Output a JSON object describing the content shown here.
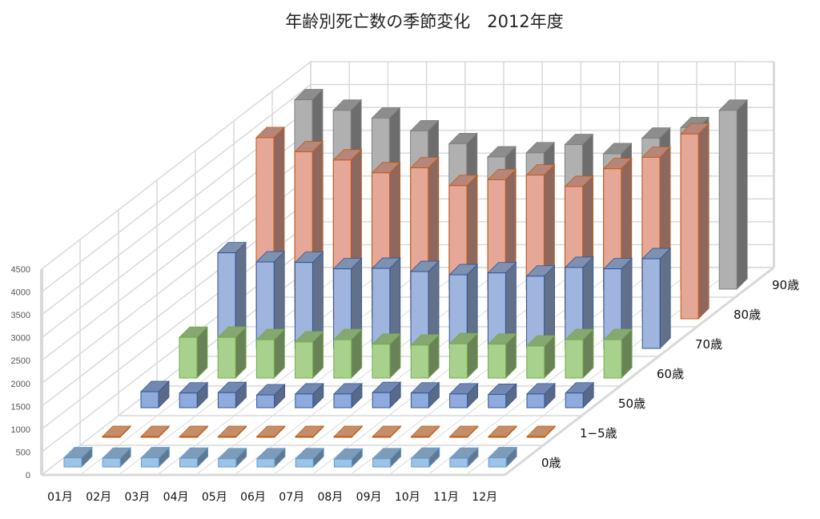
{
  "chart_data": {
    "type": "bar",
    "subtype": "3d-column",
    "title": "年齢別死亡数の季節変化　2012年度",
    "xlabel": "",
    "ylabel": "",
    "ylim": [
      0,
      4500
    ],
    "yticks": [
      "0",
      "500",
      "1000",
      "1500",
      "2000",
      "2500",
      "3000",
      "3500",
      "4000",
      "4500"
    ],
    "categories": [
      "01月",
      "02月",
      "03月",
      "04月",
      "05月",
      "06月",
      "07月",
      "08月",
      "09月",
      "10月",
      "11月",
      "12月"
    ],
    "grid": true,
    "series": [
      {
        "name": "0歳",
        "color": "#9dc3e6",
        "edge": "#5b9bd5",
        "values": [
          200,
          190,
          200,
          190,
          180,
          180,
          180,
          170,
          180,
          190,
          190,
          200
        ]
      },
      {
        "name": "1−5歳",
        "color": "#f4b183",
        "edge": "#c55a11",
        "values": [
          15,
          15,
          15,
          15,
          15,
          15,
          15,
          15,
          15,
          15,
          15,
          15
        ]
      },
      {
        "name": "50歳",
        "color": "#8faadc",
        "edge": "#2f5597",
        "values": [
          350,
          320,
          330,
          280,
          300,
          300,
          330,
          320,
          300,
          290,
          300,
          320
        ]
      },
      {
        "name": "60歳",
        "color": "#a9d18e",
        "edge": "#70ad47",
        "values": [
          890,
          890,
          840,
          790,
          840,
          740,
          720,
          750,
          740,
          700,
          840,
          840
        ]
      },
      {
        "name": "70歳",
        "color": "#9fb5dd",
        "edge": "#2f5597",
        "values": [
          2090,
          1890,
          1880,
          1740,
          1750,
          1680,
          1610,
          1650,
          1580,
          1770,
          1740,
          1960
        ]
      },
      {
        "name": "80歳",
        "color": "#e5a898",
        "edge": "#c55a11",
        "values": [
          3960,
          3650,
          3470,
          3190,
          3300,
          2910,
          3040,
          3140,
          2890,
          3280,
          3530,
          4040
        ]
      },
      {
        "name": "90歳",
        "color": "#b0b0b0",
        "edge": "#808080",
        "values": [
          4140,
          3910,
          3740,
          3460,
          3180,
          2890,
          2980,
          3160,
          2960,
          3300,
          3530,
          3910
        ]
      }
    ]
  }
}
